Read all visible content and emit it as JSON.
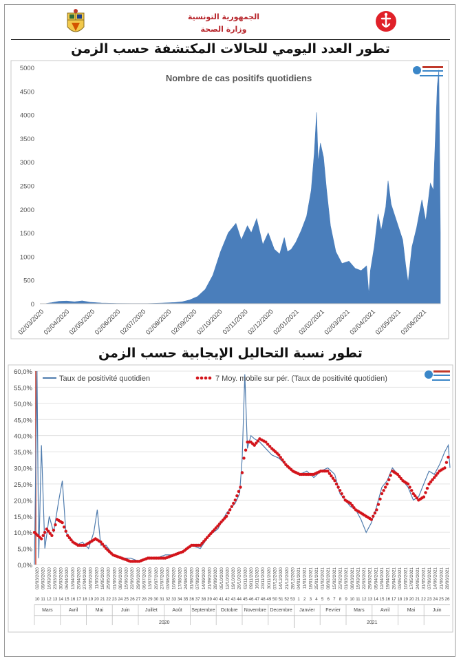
{
  "header": {
    "line1": "الجمهورية التونسية",
    "line2": "وزارة الصحة"
  },
  "chart1_title_ar": "تطور العدد اليومي للحالات المكتشفة حسب الزمن",
  "chart2_title_ar": "تطور نسبة التحاليل الإيجابية حسب الزمن",
  "colors": {
    "bar": "#4a7ebb",
    "line": "#4f7cae",
    "dots": "#d3141b",
    "red": "#c0392b"
  },
  "chart_data": [
    {
      "type": "area",
      "title": "Nombre de cas positifs quotidiens",
      "ylim": [
        0,
        5000
      ],
      "yticks": [
        "0",
        "500",
        "1000",
        "1500",
        "2000",
        "2500",
        "3000",
        "3500",
        "4000",
        "4500",
        "5000"
      ],
      "xticks": [
        "02/03/2020",
        "02/04/2020",
        "02/05/2020",
        "02/06/2020",
        "02/07/2020",
        "02/08/2020",
        "02/09/2020",
        "02/10/2020",
        "02/11/2020",
        "02/12/2020",
        "02/01/2021",
        "02/02/2021",
        "02/03/2021",
        "02/04/2021",
        "02/05/2021",
        "02/06/2021"
      ],
      "series": [
        {
          "values": [
            [
              0,
              0
            ],
            [
              8,
              5
            ],
            [
              15,
              20
            ],
            [
              25,
              50
            ],
            [
              35,
              55
            ],
            [
              45,
              40
            ],
            [
              55,
              60
            ],
            [
              65,
              30
            ],
            [
              80,
              15
            ],
            [
              100,
              8
            ],
            [
              120,
              5
            ],
            [
              140,
              5
            ],
            [
              160,
              15
            ],
            [
              175,
              25
            ],
            [
              185,
              40
            ],
            [
              195,
              80
            ],
            [
              205,
              150
            ],
            [
              215,
              300
            ],
            [
              225,
              600
            ],
            [
              235,
              1100
            ],
            [
              245,
              1500
            ],
            [
              255,
              1700
            ],
            [
              262,
              1350
            ],
            [
              270,
              1650
            ],
            [
              275,
              1500
            ],
            [
              282,
              1800
            ],
            [
              290,
              1250
            ],
            [
              297,
              1500
            ],
            [
              305,
              1150
            ],
            [
              312,
              1050
            ],
            [
              318,
              1400
            ],
            [
              322,
              1100
            ],
            [
              327,
              1150
            ],
            [
              333,
              1300
            ],
            [
              340,
              1550
            ],
            [
              347,
              1850
            ],
            [
              353,
              2400
            ],
            [
              357,
              3200
            ],
            [
              360,
              4050
            ],
            [
              362,
              3000
            ],
            [
              365,
              3400
            ],
            [
              369,
              3100
            ],
            [
              373,
              2400
            ],
            [
              378,
              1650
            ],
            [
              385,
              1100
            ],
            [
              393,
              850
            ],
            [
              402,
              900
            ],
            [
              410,
              750
            ],
            [
              418,
              700
            ],
            [
              425,
              800
            ],
            [
              428,
              200
            ],
            [
              430,
              700
            ],
            [
              435,
              1200
            ],
            [
              440,
              1900
            ],
            [
              444,
              1550
            ],
            [
              450,
              2050
            ],
            [
              453,
              2600
            ],
            [
              457,
              2100
            ],
            [
              462,
              1850
            ],
            [
              467,
              1600
            ],
            [
              472,
              1350
            ],
            [
              476,
              800
            ],
            [
              479,
              450
            ],
            [
              484,
              1200
            ],
            [
              490,
              1600
            ],
            [
              497,
              2200
            ],
            [
              502,
              1750
            ],
            [
              508,
              2550
            ],
            [
              512,
              2400
            ],
            [
              514,
              3300
            ],
            [
              517,
              4600
            ],
            [
              519,
              4950
            ],
            [
              521,
              1500
            ]
          ]
        }
      ]
    },
    {
      "type": "line",
      "title": "",
      "ylim": [
        0,
        60
      ],
      "yticks": [
        "0,0%",
        "5,0%",
        "10,0%",
        "15,0%",
        "20,0%",
        "25,0%",
        "30,0%",
        "35,0%",
        "40,0%",
        "45,0%",
        "50,0%",
        "55,0%",
        "60,0%"
      ],
      "series": [
        {
          "name": "Taux de positivité quotidien",
          "values": [
            [
              0,
              0
            ],
            [
              3,
              60
            ],
            [
              5,
              2
            ],
            [
              8,
              37
            ],
            [
              12,
              5
            ],
            [
              17,
              15
            ],
            [
              22,
              10
            ],
            [
              28,
              20
            ],
            [
              32,
              26
            ],
            [
              36,
              10
            ],
            [
              42,
              8
            ],
            [
              48,
              6
            ],
            [
              55,
              7
            ],
            [
              62,
              5
            ],
            [
              68,
              10
            ],
            [
              72,
              17
            ],
            [
              76,
              6
            ],
            [
              82,
              6
            ],
            [
              90,
              3
            ],
            [
              100,
              2
            ],
            [
              110,
              2
            ],
            [
              120,
              1
            ],
            [
              130,
              2
            ],
            [
              140,
              2
            ],
            [
              150,
              3
            ],
            [
              160,
              3
            ],
            [
              170,
              4
            ],
            [
              180,
              6
            ],
            [
              190,
              5
            ],
            [
              200,
              9
            ],
            [
              210,
              11
            ],
            [
              220,
              16
            ],
            [
              230,
              19
            ],
            [
              235,
              22
            ],
            [
              238,
              33
            ],
            [
              241,
              59
            ],
            [
              244,
              36
            ],
            [
              248,
              40
            ],
            [
              252,
              39
            ],
            [
              258,
              38
            ],
            [
              265,
              36
            ],
            [
              272,
              34
            ],
            [
              280,
              33
            ],
            [
              288,
              31
            ],
            [
              296,
              29
            ],
            [
              304,
              28
            ],
            [
              312,
              29
            ],
            [
              320,
              27
            ],
            [
              328,
              29
            ],
            [
              336,
              30
            ],
            [
              344,
              28
            ],
            [
              350,
              22
            ],
            [
              356,
              20
            ],
            [
              362,
              18
            ],
            [
              368,
              17
            ],
            [
              374,
              14
            ],
            [
              380,
              10
            ],
            [
              386,
              13
            ],
            [
              392,
              18
            ],
            [
              398,
              24
            ],
            [
              404,
              26
            ],
            [
              410,
              30
            ],
            [
              416,
              28
            ],
            [
              422,
              26
            ],
            [
              428,
              24
            ],
            [
              434,
              20
            ],
            [
              440,
              21
            ],
            [
              446,
              25
            ],
            [
              452,
              29
            ],
            [
              458,
              28
            ],
            [
              464,
              31
            ],
            [
              470,
              35
            ],
            [
              474,
              37
            ],
            [
              476,
              30
            ]
          ]
        },
        {
          "name": "7 Moy. mobile sur pér. (Taux de positivité quotidien)",
          "values": [
            [
              0,
              10
            ],
            [
              8,
              8
            ],
            [
              14,
              11
            ],
            [
              20,
              9
            ],
            [
              26,
              14
            ],
            [
              32,
              13
            ],
            [
              38,
              9
            ],
            [
              44,
              7
            ],
            [
              50,
              6
            ],
            [
              58,
              6
            ],
            [
              64,
              7
            ],
            [
              70,
              8
            ],
            [
              76,
              7
            ],
            [
              82,
              5
            ],
            [
              90,
              3
            ],
            [
              100,
              2
            ],
            [
              110,
              1
            ],
            [
              120,
              1
            ],
            [
              130,
              2
            ],
            [
              140,
              2
            ],
            [
              150,
              2
            ],
            [
              160,
              3
            ],
            [
              170,
              4
            ],
            [
              180,
              6
            ],
            [
              190,
              6
            ],
            [
              200,
              9
            ],
            [
              210,
              12
            ],
            [
              220,
              15
            ],
            [
              230,
              20
            ],
            [
              236,
              24
            ],
            [
              240,
              33
            ],
            [
              244,
              38
            ],
            [
              248,
              38
            ],
            [
              252,
              37
            ],
            [
              258,
              39
            ],
            [
              265,
              38
            ],
            [
              272,
              36
            ],
            [
              280,
              34
            ],
            [
              288,
              31
            ],
            [
              296,
              29
            ],
            [
              304,
              28
            ],
            [
              312,
              28
            ],
            [
              320,
              28
            ],
            [
              328,
              29
            ],
            [
              336,
              29
            ],
            [
              344,
              26
            ],
            [
              350,
              23
            ],
            [
              356,
              20
            ],
            [
              362,
              19
            ],
            [
              368,
              17
            ],
            [
              374,
              16
            ],
            [
              380,
              15
            ],
            [
              386,
              14
            ],
            [
              392,
              17
            ],
            [
              398,
              22
            ],
            [
              404,
              25
            ],
            [
              410,
              29
            ],
            [
              416,
              28
            ],
            [
              422,
              26
            ],
            [
              428,
              25
            ],
            [
              434,
              22
            ],
            [
              440,
              20
            ],
            [
              446,
              21
            ],
            [
              452,
              25
            ],
            [
              458,
              27
            ],
            [
              464,
              29
            ],
            [
              470,
              30
            ],
            [
              476,
              35
            ]
          ]
        }
      ],
      "month_labels": [
        "Mars",
        "Avril",
        "Mai",
        "Juin",
        "Juillet",
        "Août",
        "Septembre",
        "Octobre",
        "Novembre",
        "Decembre",
        "Janvier",
        "Fevrier",
        "Mars",
        "Avril",
        "Mai",
        "Juin"
      ],
      "year_labels": [
        "2020",
        "2021"
      ],
      "week_numbers": [
        "10",
        "11",
        "12",
        "13",
        "14",
        "15",
        "16",
        "17",
        "18",
        "19",
        "20",
        "21",
        "22",
        "23",
        "24",
        "25",
        "26",
        "27",
        "28",
        "29",
        "30",
        "31",
        "32",
        "33",
        "34",
        "35",
        "36",
        "37",
        "38",
        "39",
        "40",
        "41",
        "42",
        "43",
        "44",
        "45",
        "46",
        "47",
        "48",
        "49",
        "50",
        "51",
        "52",
        "53",
        "1",
        "2",
        "3",
        "4",
        "5",
        "6",
        "7",
        "8",
        "9",
        "10",
        "11",
        "12",
        "13",
        "14",
        "15",
        "16",
        "17",
        "18",
        "19",
        "20",
        "21",
        "22",
        "23",
        "24",
        "25",
        "26"
      ],
      "date_ticks": [
        "02/03/2020",
        "09/03/2020",
        "16/03/2020",
        "23/03/2020",
        "30/03/2020",
        "06/04/2020",
        "13/04/2020",
        "20/04/2020",
        "27/04/2020",
        "04/05/2020",
        "11/05/2020",
        "18/05/2020",
        "25/05/2020",
        "01/06/2020",
        "08/06/2020",
        "15/06/2020",
        "22/06/2020",
        "29/06/2020",
        "06/07/2020",
        "13/07/2020",
        "20/07/2020",
        "27/07/2020",
        "03/08/2020",
        "10/08/2020",
        "17/08/2020",
        "24/08/2020",
        "31/08/2020",
        "07/09/2020",
        "14/09/2020",
        "21/09/2020",
        "28/09/2020",
        "05/10/2020",
        "12/10/2020",
        "19/10/2020",
        "26/10/2020",
        "02/11/2020",
        "09/11/2020",
        "16/11/2020",
        "23/11/2020",
        "30/11/2020",
        "07/12/2020",
        "14/12/2020",
        "21/12/2020",
        "28/12/2020",
        "04/01/2021",
        "11/01/2021",
        "18/01/2021",
        "25/01/2021",
        "01/02/2021",
        "08/02/2021",
        "15/02/2021",
        "22/02/2021",
        "01/03/2021",
        "08/03/2021",
        "15/03/2021",
        "22/03/2021",
        "29/03/2021",
        "05/04/2021",
        "12/04/2021",
        "19/04/2021",
        "26/04/2021",
        "03/05/2021",
        "10/05/2021",
        "17/05/2021",
        "24/05/2021",
        "31/05/2021",
        "07/06/2021",
        "14/06/2021",
        "21/06/2021",
        "28/06/2021"
      ]
    }
  ]
}
